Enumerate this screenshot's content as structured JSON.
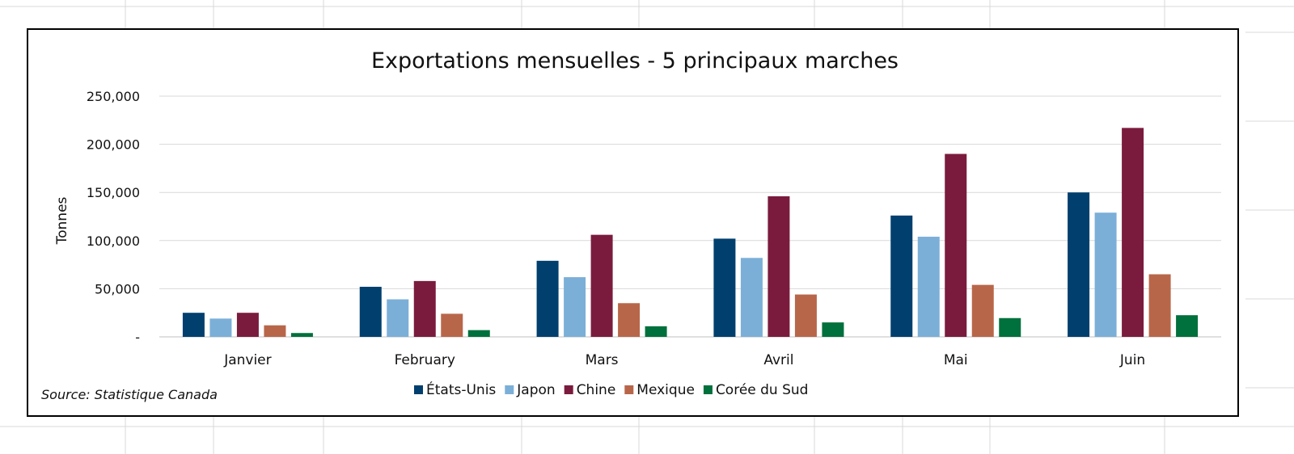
{
  "chart_data": {
    "type": "bar",
    "title": "Exportations mensuelles - 5 principaux marches",
    "ylabel": "Tonnes",
    "xlabel": "",
    "categories": [
      "Janvier",
      "February",
      "Mars",
      "Avril",
      "Mai",
      "Juin"
    ],
    "ylim": [
      0,
      250000
    ],
    "yticks": [
      0,
      50000,
      100000,
      150000,
      200000,
      250000
    ],
    "ytick_labels": [
      "-",
      "50,000",
      "100,000",
      "150,000",
      "200,000",
      "250,000"
    ],
    "grid": true,
    "legend_position": "bottom",
    "source": "Source: Statistique Canada",
    "series": [
      {
        "name": "États-Unis",
        "color": "#003f6e",
        "values": [
          25000,
          52000,
          79000,
          102000,
          126000,
          150000
        ]
      },
      {
        "name": "Japon",
        "color": "#7bafd8",
        "values": [
          19000,
          39000,
          62000,
          82000,
          104000,
          129000
        ]
      },
      {
        "name": "Chine",
        "color": "#7a1b3d",
        "values": [
          25000,
          58000,
          106000,
          146000,
          190000,
          217000
        ]
      },
      {
        "name": "Mexique",
        "color": "#b8664a",
        "values": [
          12000,
          24000,
          35000,
          44000,
          54000,
          65000
        ]
      },
      {
        "name": "Corée du Sud",
        "color": "#00703c",
        "values": [
          4000,
          7000,
          11000,
          15000,
          19500,
          22500
        ]
      }
    ]
  }
}
